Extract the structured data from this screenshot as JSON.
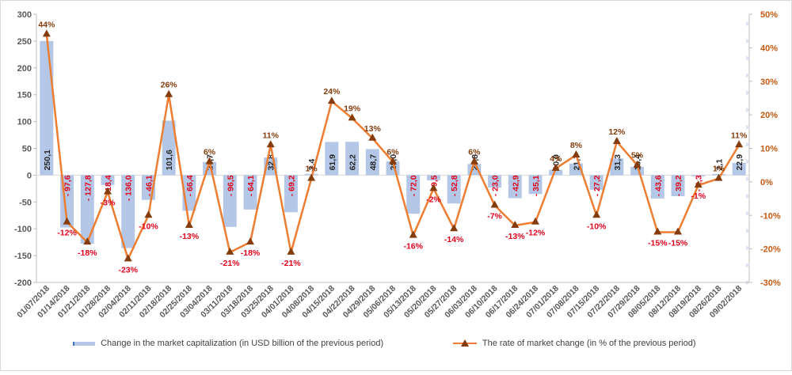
{
  "chart_data": {
    "type": "bar+line",
    "categories": [
      "01/07/2018",
      "01/14/2018",
      "01/21/2018",
      "01/28/2018",
      "02/04/2018",
      "02/11/2018",
      "02/18/2018",
      "02/25/2018",
      "03/04/2018",
      "03/11/2018",
      "03/18/2018",
      "03/25/2018",
      "04/01/2018",
      "04/08/2018",
      "04/15/2018",
      "04/22/2018",
      "04/29/2018",
      "05/06/2018",
      "05/13/2018",
      "05/20/2018",
      "05/27/2018",
      "06/03/2018",
      "06/10/2018",
      "06/17/2018",
      "06/24/2018",
      "07/01/2018",
      "07/08/2018",
      "07/15/2018",
      "07/22/2018",
      "07/29/2018",
      "08/05/2018",
      "08/12/2018",
      "08/19/2018",
      "08/26/2018",
      "09/02/2018"
    ],
    "bar_series": {
      "name": "Change in the market capitalization  (in USD billion of the previous period)",
      "values": [
        250.1,
        -97.6,
        -127.8,
        -18.4,
        -136.0,
        -46.1,
        101.6,
        -66.4,
        24.7,
        -96.5,
        -64.1,
        32.8,
        -69.2,
        2.4,
        61.9,
        62.2,
        48.7,
        26.0,
        -72.0,
        -9.5,
        -52.8,
        20.8,
        -23.0,
        -42.9,
        -35.1,
        10.0,
        21.7,
        -27.2,
        31.3,
        15.4,
        -43.6,
        -39.2,
        -2.3,
        2.1,
        22.9
      ],
      "labels": [
        "250,1",
        "- 97,6",
        "- 127,8",
        "- 18,4",
        "- 136,0",
        "- 46,1",
        "101,6",
        "- 66,4",
        "24,7",
        "- 96,5",
        "- 64,1",
        "32,8",
        "- 69,2",
        "2,4",
        "61,9",
        "62,2",
        "48,7",
        "26,0",
        "- 72,0",
        "- 9,5",
        "- 52,8",
        "20,8",
        "- 23,0",
        "- 42,9",
        "- 35,1",
        "10,0",
        "21,7",
        "- 27,2",
        "31,3",
        "15,4",
        "- 43,6",
        "- 39,2",
        "- 2,3",
        "2,1",
        "22,9"
      ],
      "color": "#b4c7e7"
    },
    "line_series": {
      "name": "The rate of market change (in % of the previous period)",
      "values": [
        44,
        -12,
        -18,
        -3,
        -23,
        -10,
        26,
        -13,
        6,
        -21,
        -18,
        11,
        -21,
        1,
        24,
        19,
        13,
        6,
        -16,
        -2,
        -14,
        6,
        -7,
        -13,
        -12,
        4,
        8,
        -10,
        12,
        5,
        -15,
        -15,
        -1,
        1,
        11
      ],
      "labels": [
        "44%",
        "-12%",
        "-18%",
        "-3%",
        "-23%",
        "-10%",
        "26%",
        "-13%",
        "6%",
        "-21%",
        "-18%",
        "11%",
        "-21%",
        "1%",
        "24%",
        "19%",
        "13%",
        "6%",
        "-16%",
        "-2%",
        "-14%",
        "6%",
        "-7%",
        "-13%",
        "-12%",
        "4%",
        "8%",
        "-10%",
        "12%",
        "5%",
        "-15%",
        "-15%",
        "-1%",
        "1%",
        "11%"
      ],
      "color": "#ed7d31",
      "marker_color": "#843c0c"
    },
    "y_left": {
      "min": -200,
      "max": 300,
      "step": 50,
      "ticks": [
        "-200",
        "-150",
        "-100",
        "-50",
        "0",
        "50",
        "100",
        "150",
        "200",
        "250",
        "300"
      ]
    },
    "y_right": {
      "min": -30,
      "max": 50,
      "step": 10,
      "ticks": [
        "-30%",
        "-20%",
        "-10%",
        "0%",
        "10%",
        "20%",
        "30%",
        "40%",
        "50%"
      ]
    },
    "grid": false,
    "legend_position": "bottom",
    "colors": {
      "negative_label": "#e0001b",
      "positive_bar_label": "#262626",
      "positive_rate_label": "#843c0c",
      "axis_text": "#595959",
      "right_axis_text": "#c55a11"
    }
  }
}
